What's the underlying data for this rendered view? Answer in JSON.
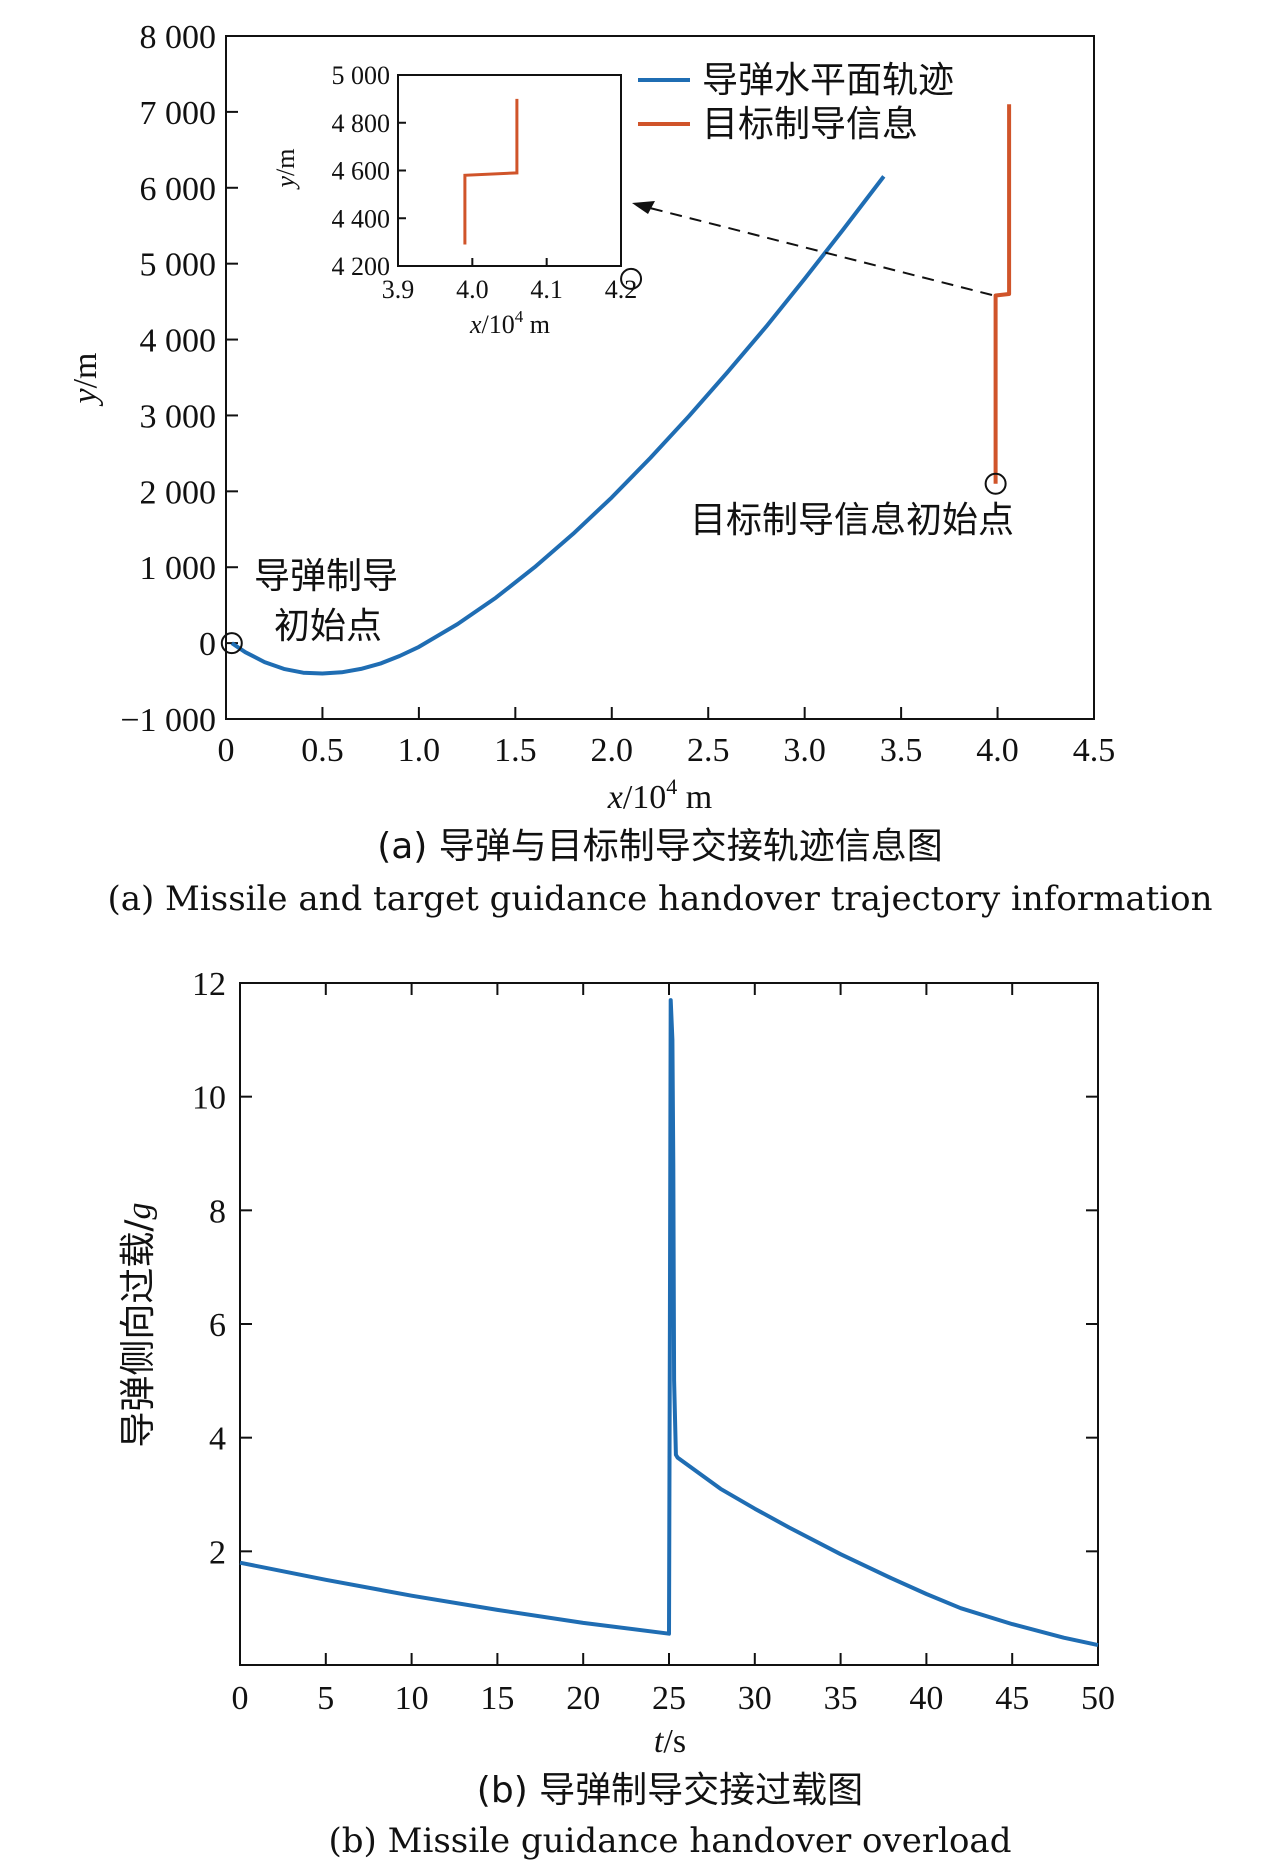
{
  "chart_data": [
    {
      "type": "line",
      "xlabel_var": "x",
      "xlabel_unit": "/10",
      "xlabel_exp": "4",
      "xlabel_tail": " m",
      "ylabel_var": "y",
      "ylabel_unit": "/m",
      "xlim": [
        0,
        4.5
      ],
      "ylim": [
        -1000,
        8000
      ],
      "x_ticks": [
        0,
        0.5,
        1.0,
        1.5,
        2.0,
        2.5,
        3.0,
        3.5,
        4.0,
        4.5
      ],
      "x_tick_labels": [
        "0",
        "0.5",
        "1.0",
        "1.5",
        "2.0",
        "2.5",
        "3.0",
        "3.5",
        "4.0",
        "4.5"
      ],
      "y_ticks": [
        -1000,
        0,
        1000,
        2000,
        3000,
        4000,
        5000,
        6000,
        7000,
        8000
      ],
      "y_tick_labels": [
        "−1 000",
        "0",
        "1 000",
        "2 000",
        "3 000",
        "4 000",
        "5 000",
        "6 000",
        "7 000",
        "8 000"
      ],
      "legend": {
        "position": "top-right",
        "entries": [
          "导弹水平面轨迹",
          "目标制导信息"
        ]
      },
      "series": [
        {
          "name": "导弹水平面轨迹",
          "color": "#1f6db3",
          "x": [
            0.03,
            0.1,
            0.2,
            0.3,
            0.4,
            0.5,
            0.6,
            0.7,
            0.8,
            0.9,
            1.0,
            1.2,
            1.4,
            1.6,
            1.8,
            2.0,
            2.2,
            2.4,
            2.6,
            2.8,
            3.0,
            3.2,
            3.41
          ],
          "y": [
            0,
            -120,
            -250,
            -340,
            -390,
            -400,
            -385,
            -340,
            -270,
            -170,
            -50,
            250,
            600,
            1000,
            1440,
            1920,
            2440,
            2990,
            3570,
            4170,
            4800,
            5450,
            6150
          ]
        },
        {
          "name": "目标制导信息",
          "color": "#d0542a",
          "x": [
            3.99,
            3.99,
            4.06,
            4.06
          ],
          "y": [
            2100,
            4580,
            4600,
            7100
          ]
        }
      ],
      "markers": [
        {
          "x": 0.03,
          "y": 0
        },
        {
          "x": 3.99,
          "y": 2100
        },
        {
          "x": 2.1,
          "y": 4800
        }
      ],
      "annotations": {
        "missile_start_line1": "导弹制导",
        "missile_start_line2": "初始点",
        "target_start": "目标制导信息初始点"
      },
      "inset": {
        "xlim": [
          3.9,
          4.2
        ],
        "ylim": [
          4200,
          5000
        ],
        "x_tick_labels": [
          "3.9",
          "4.0",
          "4.1",
          "4.2"
        ],
        "y_tick_labels": [
          "4 200",
          "4 400",
          "4 600",
          "4 800",
          "5 000"
        ],
        "xlabel_var": "x",
        "xlabel_unit": "/10",
        "xlabel_exp": "4",
        "xlabel_tail": " m",
        "ylabel_var": "y",
        "ylabel_unit": "/m",
        "series_x": [
          3.99,
          3.99,
          4.06,
          4.06
        ],
        "series_y": [
          4290,
          4580,
          4590,
          4900
        ]
      },
      "caption_cn": "(a) 导弹与目标制导交接轨迹信息图",
      "caption_en": "(a) Missile and target guidance handover trajectory information"
    },
    {
      "type": "line",
      "xlabel_var": "t",
      "xlabel_unit": "/s",
      "ylabel_cn": "导弹侧向过载/",
      "ylabel_var": "g",
      "xlim": [
        0,
        50
      ],
      "ylim": [
        0,
        12
      ],
      "x_tick_labels": [
        "0",
        "5",
        "10",
        "15",
        "20",
        "25",
        "30",
        "35",
        "40",
        "45",
        "50"
      ],
      "y_tick_labels": [
        "2",
        "4",
        "6",
        "8",
        "10",
        "12"
      ],
      "series": [
        {
          "color": "#1f6db3",
          "x": [
            0,
            5,
            10,
            15,
            20,
            25,
            25.05,
            25.1,
            25.2,
            25.25,
            25.3,
            25.4,
            25.5,
            28,
            30,
            32,
            35,
            38,
            40,
            42,
            45,
            48,
            50
          ],
          "y": [
            1.8,
            1.5,
            1.22,
            0.97,
            0.74,
            0.55,
            6.0,
            11.7,
            11.0,
            8.8,
            5.0,
            3.7,
            3.65,
            3.1,
            2.75,
            2.42,
            1.95,
            1.52,
            1.25,
            1.0,
            0.72,
            0.48,
            0.35
          ]
        }
      ],
      "caption_cn": "(b) 导弹制导交接过载图",
      "caption_en": "(b) Missile guidance handover overload"
    }
  ]
}
